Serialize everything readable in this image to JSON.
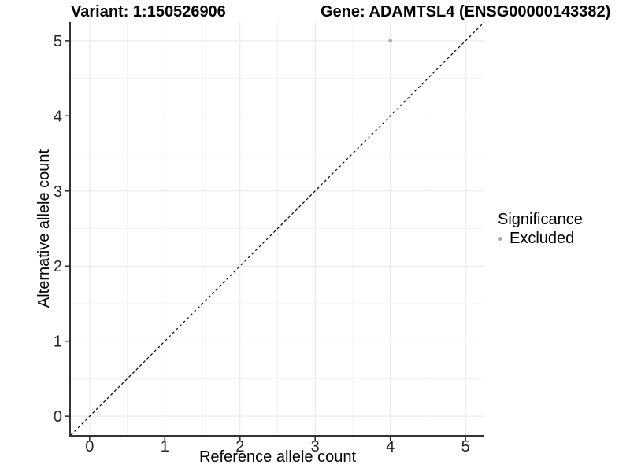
{
  "titles": {
    "variant": "Variant: 1:150526906",
    "gene": "Gene: ADAMTSL4 (ENSG00000143382)"
  },
  "chart_data": {
    "type": "scatter",
    "xlabel": "Reference allele count",
    "ylabel": "Alternative allele count",
    "xlim": [
      -0.25,
      5.25
    ],
    "ylim": [
      -0.25,
      5.25
    ],
    "xticks": [
      0,
      1,
      2,
      3,
      4,
      5
    ],
    "yticks": [
      0,
      1,
      2,
      3,
      4,
      5
    ],
    "grid": "major-and-minor",
    "points": [
      {
        "x": 4,
        "y": 5,
        "series": "Excluded"
      }
    ],
    "identity_line": {
      "from": [
        -0.25,
        -0.25
      ],
      "to": [
        5.25,
        5.25
      ],
      "style": "dashed",
      "color": "#000000"
    },
    "legend": {
      "position": "right",
      "title": "Significance",
      "entries": [
        {
          "label": "Excluded",
          "color": "#aaaaaa",
          "marker": "circle"
        }
      ]
    },
    "colors": {
      "point": "#aaaaaa",
      "grid_major": "#e8e8e8",
      "grid_minor": "#f3f3f3",
      "axis_line": "#333333",
      "tick_text": "#262626",
      "background": "#ffffff"
    }
  }
}
